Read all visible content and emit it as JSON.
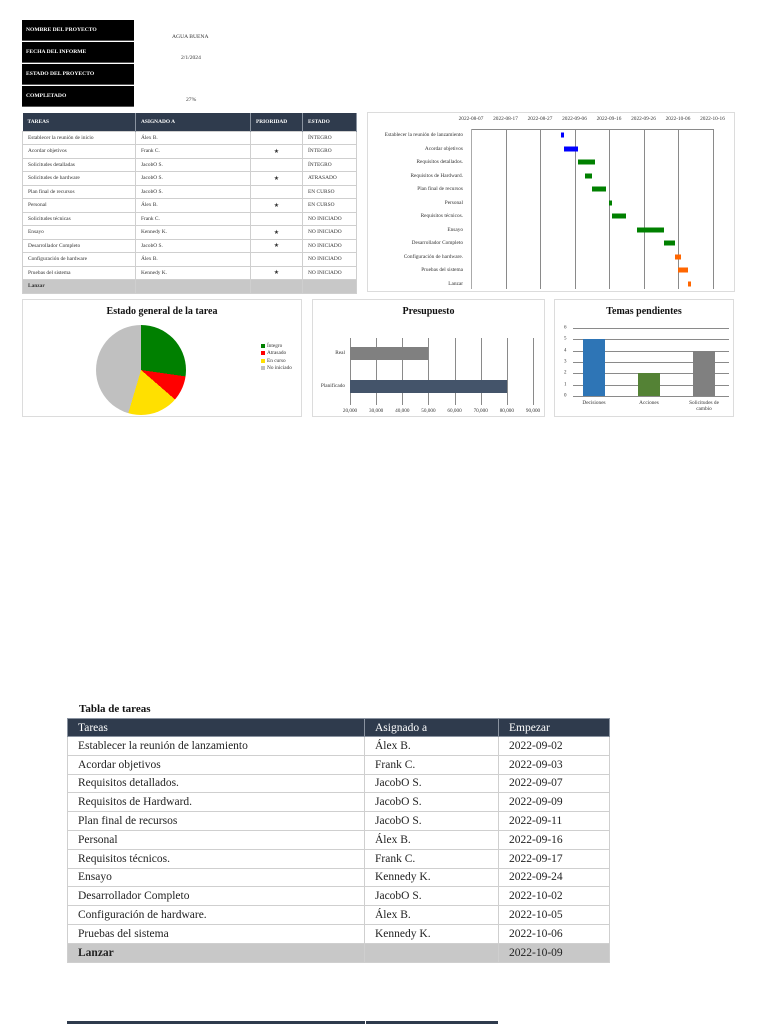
{
  "project_info": {
    "rows": [
      {
        "label": "NOMBRE DEL PROYECTO",
        "value": "AGUA  BUENA"
      },
      {
        "label": "FECHA DEL INFORME",
        "value": "2/1/2024"
      },
      {
        "label": "ESTADO DEL PROYECTO",
        "value": ""
      },
      {
        "label": "COMPLETADO",
        "value": "27%"
      }
    ]
  },
  "status_table": {
    "headers": [
      "TAREAS",
      "ASIGNADO A",
      "PRIORIDAD",
      "ESTADO"
    ],
    "rows": [
      {
        "task": "Establecer la reunión de inicio",
        "assignee": "Álex B.",
        "priority": "",
        "status": "ÍNTEGRO",
        "status_class": "st-integro"
      },
      {
        "task": "Acordar objetivos",
        "assignee": "Frank C.",
        "priority": "★",
        "status": "ÍNTEGRO",
        "status_class": "st-integro"
      },
      {
        "task": "Solicitudes detalladas",
        "assignee": "JacobO S.",
        "priority": "",
        "status": "ÍNTEGRO",
        "status_class": "st-integro"
      },
      {
        "task": "Solicitudes de hardware",
        "assignee": "JacobO S.",
        "priority": "★",
        "status": "ATRASADO",
        "status_class": "st-atrasado"
      },
      {
        "task": "Plan final de recursos",
        "assignee": "JacobO S.",
        "priority": "",
        "status": "EN CURSO",
        "status_class": "st-encurso"
      },
      {
        "task": "Personal",
        "assignee": "Álex B.",
        "priority": "★",
        "status": "EN CURSO",
        "status_class": "st-encurso"
      },
      {
        "task": "Solicitudes técnicas",
        "assignee": "Frank C.",
        "priority": "",
        "status": "NO INICIADO",
        "status_class": "st-noiniciado"
      },
      {
        "task": "Ensayo",
        "assignee": "Kennedy K.",
        "priority": "★",
        "status": "NO INICIADO",
        "status_class": "st-noiniciado"
      },
      {
        "task": "Desarrollador Completo",
        "assignee": "JacobO S.",
        "priority": "★",
        "status": "NO INICIADO",
        "status_class": "st-noiniciado"
      },
      {
        "task": "Configuración de hardware",
        "assignee": "Álex B.",
        "priority": "",
        "status": "NO INICIADO",
        "status_class": "st-noiniciado"
      },
      {
        "task": "Pruebas del sistema",
        "assignee": "Kennedy K.",
        "priority": "★",
        "status": "NO INICIADO",
        "status_class": "st-noiniciado"
      }
    ],
    "launch_row": {
      "task": "Lanzar"
    }
  },
  "chart_data": [
    {
      "type": "bar",
      "subtype": "gantt",
      "title": "",
      "x_ticks": [
        "2022-08-07",
        "2022-08-17",
        "2022-08-27",
        "2022-09-06",
        "2022-09-16",
        "2022-09-26",
        "2022-10-06",
        "2022-10-16"
      ],
      "xlim": [
        "2022-08-07",
        "2022-10-16"
      ],
      "grid": true,
      "tasks": [
        {
          "name": "Establecer la reunión de lanzamiento",
          "start": "2022-09-02",
          "days": 1,
          "color": "#0000ff"
        },
        {
          "name": "Acordar objetivos",
          "start": "2022-09-03",
          "days": 4,
          "color": "#0000ff"
        },
        {
          "name": "Requisitos detallados.",
          "start": "2022-09-07",
          "days": 5,
          "color": "#008000"
        },
        {
          "name": "Requisitos de Hardward.",
          "start": "2022-09-09",
          "days": 2,
          "color": "#008000"
        },
        {
          "name": "Plan final de recursos",
          "start": "2022-09-11",
          "days": 4,
          "color": "#008000"
        },
        {
          "name": "Personal",
          "start": "2022-09-16",
          "days": 1,
          "color": "#008000"
        },
        {
          "name": "Requisitos técnicos.",
          "start": "2022-09-17",
          "days": 4,
          "color": "#008000"
        },
        {
          "name": "Ensayo",
          "start": "2022-09-24",
          "days": 8,
          "color": "#008000"
        },
        {
          "name": "Desarrollador Completo",
          "start": "2022-10-02",
          "days": 3,
          "color": "#008000"
        },
        {
          "name": "Configuración de hardware.",
          "start": "2022-10-05",
          "days": 2,
          "color": "#ff6600"
        },
        {
          "name": "Pruebas del sistema",
          "start": "2022-10-06",
          "days": 3,
          "color": "#ff6600"
        },
        {
          "name": "Lanzar",
          "start": "2022-10-09",
          "days": 0.6,
          "color": "#ff6600"
        }
      ]
    },
    {
      "type": "pie",
      "title": "Estado general de la tarea",
      "categories": [
        "Íntegro",
        "Atrasado",
        "En curso",
        "No iniciado"
      ],
      "values": [
        3,
        1,
        2,
        5
      ],
      "colors": [
        "#008000",
        "#ff0000",
        "#ffe000",
        "#c0c0c0"
      ],
      "legend_position": "right"
    },
    {
      "type": "bar",
      "orientation": "horizontal",
      "title": "Presupuesto",
      "categories": [
        "Real",
        "Planificado"
      ],
      "values": [
        50000,
        80000
      ],
      "colors": [
        "#808080",
        "#44546a"
      ],
      "x_ticks": [
        "20,000",
        "30,000",
        "40,000",
        "50,000",
        "60,000",
        "70,000",
        "80,000",
        "90,000"
      ],
      "xlim": [
        20000,
        90000
      ],
      "grid": true
    },
    {
      "type": "bar",
      "title": "Temas pendientes",
      "categories": [
        "Decisiones",
        "Acciones",
        "Solicitudes de cambio"
      ],
      "values": [
        5,
        2,
        4
      ],
      "colors": [
        "#2e75b6",
        "#548235",
        "#808080"
      ],
      "y_ticks": [
        0,
        1,
        2,
        3,
        4,
        5,
        6
      ],
      "ylim": [
        0,
        6
      ],
      "grid": true
    }
  ],
  "lower_table": {
    "title": "Tabla de tareas",
    "headers": [
      "Tareas",
      "Asignado a",
      "Empezar"
    ],
    "rows": [
      {
        "task": "Establecer la reunión de lanzamiento",
        "assignee": "Álex B.",
        "start": "2022-09-02"
      },
      {
        "task": "Acordar objetivos",
        "assignee": "Frank C.",
        "start": "2022-09-03"
      },
      {
        "task": "Requisitos detallados.",
        "assignee": "JacobO S.",
        "start": "2022-09-07"
      },
      {
        "task": "Requisitos de Hardward.",
        "assignee": "JacobO S.",
        "start": "2022-09-09"
      },
      {
        "task": "Plan final de recursos",
        "assignee": "JacobO S.",
        "start": "2022-09-11"
      },
      {
        "task": "Personal",
        "assignee": "Álex B.",
        "start": "2022-09-16"
      },
      {
        "task": "Requisitos técnicos.",
        "assignee": "Frank C.",
        "start": "2022-09-17"
      },
      {
        "task": "Ensayo",
        "assignee": "Kennedy K.",
        "start": "2022-09-24"
      },
      {
        "task": "Desarrollador Completo",
        "assignee": "JacobO S.",
        "start": "2022-10-02"
      },
      {
        "task": "Configuración de hardware.",
        "assignee": "Álex B.",
        "start": "2022-10-05"
      },
      {
        "task": "Pruebas del sistema",
        "assignee": "Kennedy K.",
        "start": "2022-10-06"
      }
    ],
    "launch_row": {
      "task": "Lanzar",
      "assignee": "",
      "start": "2022-10-09"
    }
  }
}
